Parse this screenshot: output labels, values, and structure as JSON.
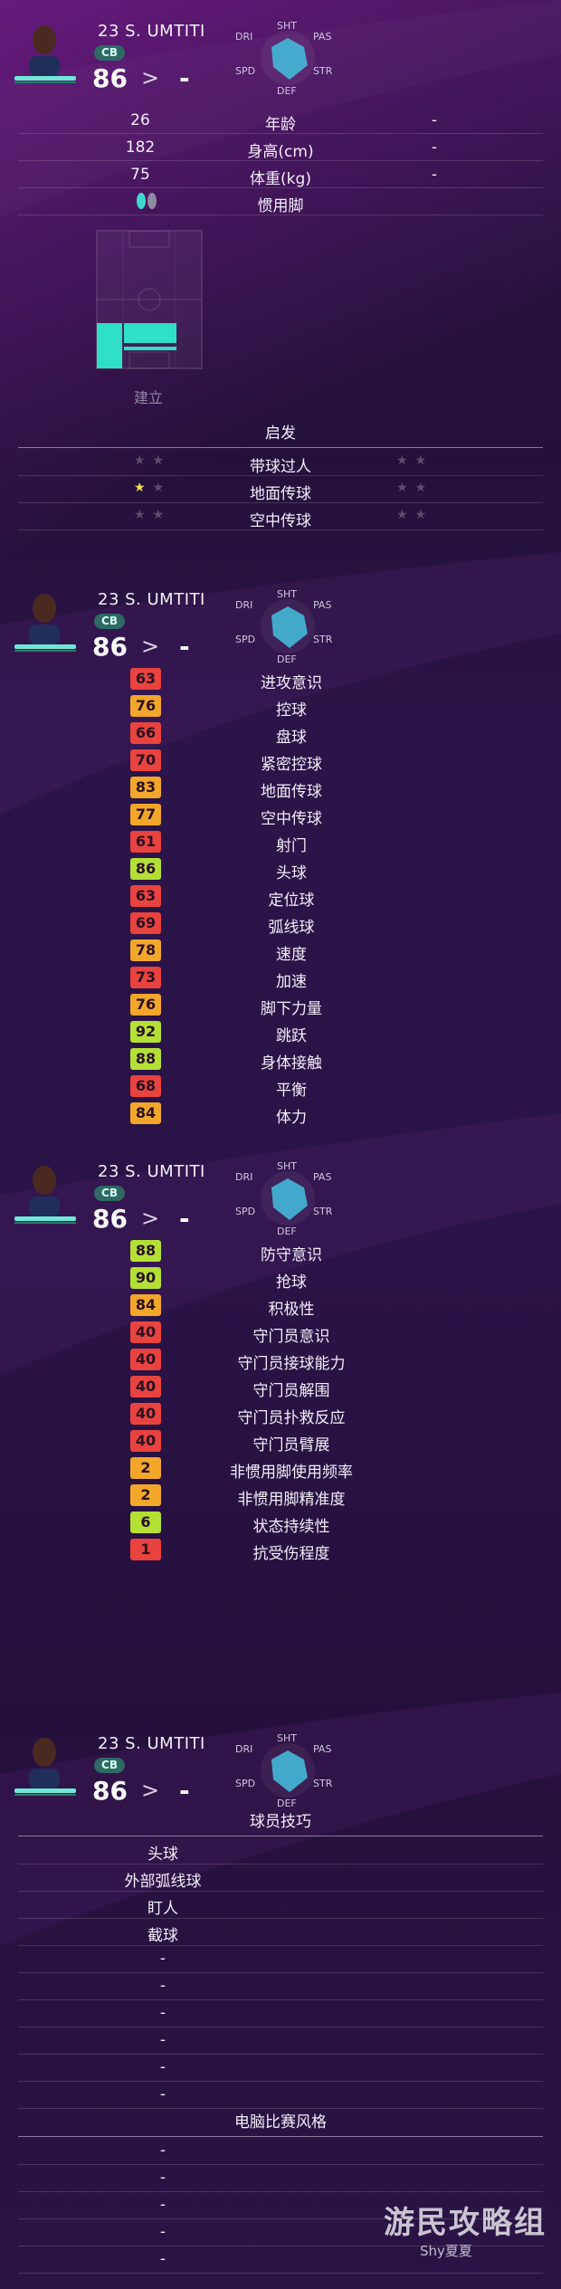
{
  "player": {
    "number_name": "23 S. UMTITI",
    "position": "CB",
    "overall": "86",
    "arrow": ">",
    "potential": "-",
    "radar": {
      "sht": "SHT",
      "pas": "PAS",
      "dri": "DRI",
      "str": "STR",
      "spd": "SPD",
      "def": "DEF"
    }
  },
  "profile": {
    "rows": [
      {
        "value": "26",
        "label": "年龄",
        "value2": "-"
      },
      {
        "value": "182",
        "label": "身高(cm)",
        "value2": "-"
      },
      {
        "value": "75",
        "label": "体重(kg)",
        "value2": "-"
      }
    ],
    "foot_label": "惯用脚",
    "build_label": "建立"
  },
  "skills_header": "启发",
  "skills_rows": [
    {
      "name": "带球过人",
      "left_on": 0,
      "right_on": 0
    },
    {
      "name": "地面传球",
      "left_on": 1,
      "right_on": 0
    },
    {
      "name": "空中传球",
      "left_on": 0,
      "right_on": 0
    }
  ],
  "stats_a": [
    {
      "v": "63",
      "n": "进攻意识",
      "c": "#e8433f"
    },
    {
      "v": "76",
      "n": "控球",
      "c": "#f2a72b"
    },
    {
      "v": "66",
      "n": "盘球",
      "c": "#e8433f"
    },
    {
      "v": "70",
      "n": "紧密控球",
      "c": "#e8433f"
    },
    {
      "v": "83",
      "n": "地面传球",
      "c": "#f2a72b"
    },
    {
      "v": "77",
      "n": "空中传球",
      "c": "#f2a72b"
    },
    {
      "v": "61",
      "n": "射门",
      "c": "#e8433f"
    },
    {
      "v": "86",
      "n": "头球",
      "c": "#b4e036"
    },
    {
      "v": "63",
      "n": "定位球",
      "c": "#e8433f"
    },
    {
      "v": "69",
      "n": "弧线球",
      "c": "#e8433f"
    },
    {
      "v": "78",
      "n": "速度",
      "c": "#f2a72b"
    },
    {
      "v": "73",
      "n": "加速",
      "c": "#e8433f"
    },
    {
      "v": "76",
      "n": "脚下力量",
      "c": "#f2a72b"
    },
    {
      "v": "92",
      "n": "跳跃",
      "c": "#b4e036"
    },
    {
      "v": "88",
      "n": "身体接触",
      "c": "#b4e036"
    },
    {
      "v": "68",
      "n": "平衡",
      "c": "#e8433f"
    },
    {
      "v": "84",
      "n": "体力",
      "c": "#f2a72b"
    }
  ],
  "stats_b": [
    {
      "v": "88",
      "n": "防守意识",
      "c": "#b4e036"
    },
    {
      "v": "90",
      "n": "抢球",
      "c": "#b4e036"
    },
    {
      "v": "84",
      "n": "积极性",
      "c": "#f2a72b"
    },
    {
      "v": "40",
      "n": "守门员意识",
      "c": "#e8433f"
    },
    {
      "v": "40",
      "n": "守门员接球能力",
      "c": "#e8433f"
    },
    {
      "v": "40",
      "n": "守门员解围",
      "c": "#e8433f"
    },
    {
      "v": "40",
      "n": "守门员扑救反应",
      "c": "#e8433f"
    },
    {
      "v": "40",
      "n": "守门员臂展",
      "c": "#e8433f"
    },
    {
      "v": "2",
      "n": "非惯用脚使用频率",
      "c": "#f2a72b"
    },
    {
      "v": "2",
      "n": "非惯用脚精准度",
      "c": "#f2a72b"
    },
    {
      "v": "6",
      "n": "状态持续性",
      "c": "#b4e036"
    },
    {
      "v": "1",
      "n": "抗受伤程度",
      "c": "#e8433f"
    }
  ],
  "player_skills": {
    "title": "球员技巧",
    "items": [
      "头球",
      "外部弧线球",
      "盯人",
      "截球",
      "-",
      "-",
      "-",
      "-",
      "-",
      "-"
    ]
  },
  "ai_style": {
    "title": "电脑比赛风格",
    "items": [
      "-",
      "-",
      "-",
      "-",
      "-"
    ]
  },
  "watermark": {
    "title": "游民攻略组",
    "sub": "Shy夏夏"
  },
  "colors": {
    "red": "#e8433f",
    "orange": "#f2a72b",
    "green": "#b4e036",
    "teal": "#6fe8d8"
  }
}
